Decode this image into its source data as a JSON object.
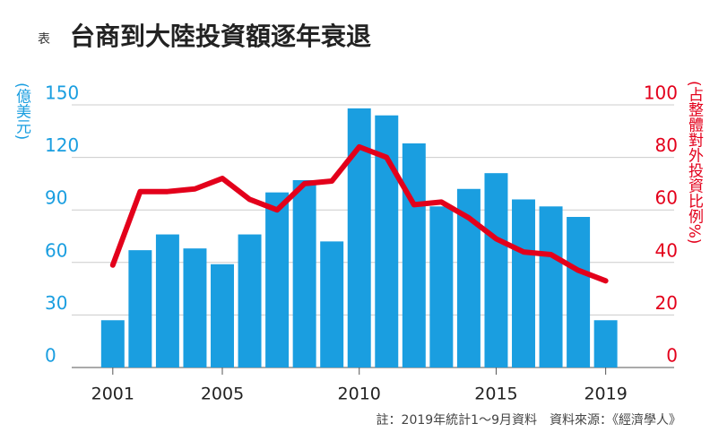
{
  "chart_data": {
    "type": "bar",
    "title_prefix": "表",
    "title": "台商到大陸投資額逐年衰退",
    "y_label": "(億美元)",
    "y2_label": "(占整體對外投資比例%)",
    "note": "註：2019年統計1～9月資料　資料來源：《經濟學人》",
    "x": [
      2001,
      2002,
      2003,
      2004,
      2005,
      2006,
      2007,
      2008,
      2009,
      2010,
      2011,
      2012,
      2013,
      2014,
      2015,
      2016,
      2017,
      2018,
      2019
    ],
    "xlim": [
      1999.5,
      2021.5
    ],
    "xticks": [
      2001,
      2005,
      2010,
      2015,
      2019
    ],
    "ylim": [
      0,
      150
    ],
    "yticks": [
      0,
      30,
      60,
      90,
      120,
      150
    ],
    "y2lim": [
      0,
      100
    ],
    "y2ticks": [
      0,
      20,
      40,
      60,
      80,
      100
    ],
    "grid": true,
    "series": [
      {
        "type": "bar",
        "color": "#1a9ee0",
        "values": [
          27,
          67,
          76,
          68,
          59,
          76,
          100,
          107,
          72,
          148,
          144,
          128,
          92,
          102,
          111,
          96,
          92,
          86,
          27
        ]
      },
      {
        "type": "line",
        "axis": "y2",
        "color": "#e3001b",
        "values": [
          39,
          67,
          67,
          68,
          72,
          64,
          60,
          70,
          71,
          84,
          80,
          62,
          63,
          57,
          49,
          44,
          43,
          37,
          33
        ]
      }
    ]
  }
}
